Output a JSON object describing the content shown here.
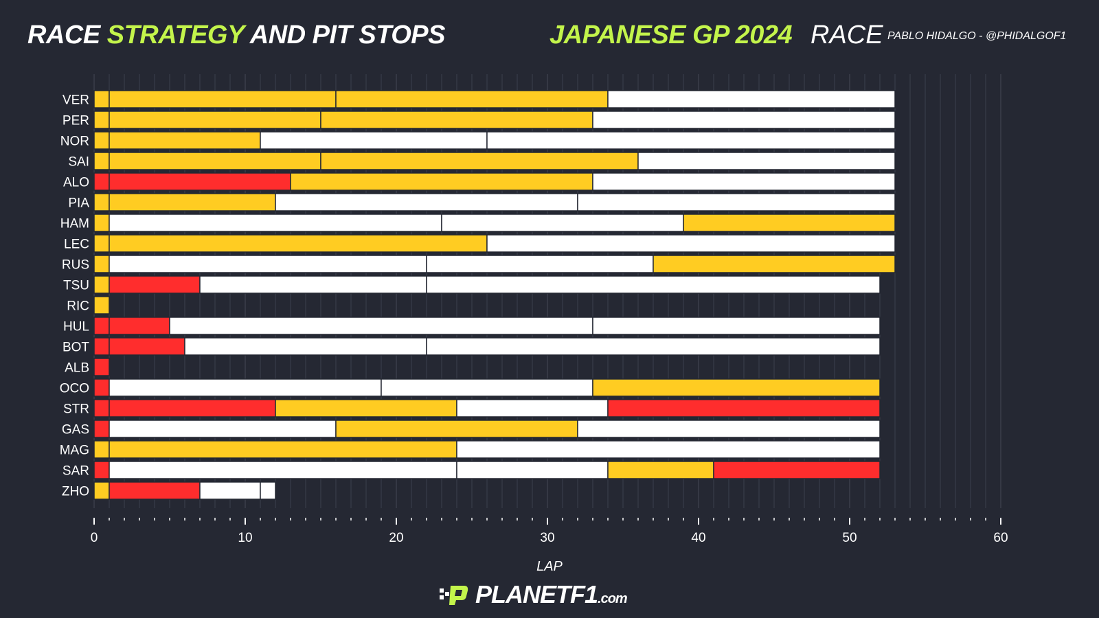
{
  "header": {
    "title_part1": "RACE ",
    "title_accent": "STRATEGY",
    "title_part2": " AND PIT STOPS",
    "event": "JAPANESE GP 2024",
    "session": "RACE",
    "author": "PABLO HIDALGO - @PHIDALGOF1"
  },
  "logo": {
    "main": "PLANETF1",
    "suffix": ".com"
  },
  "colors": {
    "background": "#252833",
    "accent": "#c3f44b",
    "soft": "#ff2d2d",
    "medium": "#ffcc22",
    "hard": "#ffffff"
  },
  "chart_data": {
    "type": "bar",
    "orientation": "horizontal-stacked",
    "xlabel": "LAP",
    "xlim": [
      0,
      60
    ],
    "xticks": [
      0,
      10,
      20,
      30,
      40,
      50,
      60
    ],
    "grid": "vertical, every lap",
    "drivers": [
      "VER",
      "PER",
      "NOR",
      "SAI",
      "ALO",
      "PIA",
      "HAM",
      "LEC",
      "RUS",
      "TSU",
      "RIC",
      "HUL",
      "BOT",
      "ALB",
      "OCO",
      "STR",
      "GAS",
      "MAG",
      "SAR",
      "ZHO"
    ],
    "stints": [
      [
        [
          "medium",
          0,
          1
        ],
        [
          "medium",
          1,
          16
        ],
        [
          "medium",
          16,
          34
        ],
        [
          "hard",
          34,
          53
        ]
      ],
      [
        [
          "medium",
          0,
          1
        ],
        [
          "medium",
          1,
          15
        ],
        [
          "medium",
          15,
          33
        ],
        [
          "hard",
          33,
          53
        ]
      ],
      [
        [
          "medium",
          0,
          1
        ],
        [
          "medium",
          1,
          11
        ],
        [
          "hard",
          11,
          26
        ],
        [
          "hard",
          26,
          53
        ]
      ],
      [
        [
          "medium",
          0,
          1
        ],
        [
          "medium",
          1,
          15
        ],
        [
          "medium",
          15,
          36
        ],
        [
          "hard",
          36,
          53
        ]
      ],
      [
        [
          "soft",
          0,
          1
        ],
        [
          "soft",
          1,
          13
        ],
        [
          "medium",
          13,
          33
        ],
        [
          "hard",
          33,
          53
        ]
      ],
      [
        [
          "medium",
          0,
          1
        ],
        [
          "medium",
          1,
          12
        ],
        [
          "hard",
          12,
          32
        ],
        [
          "hard",
          32,
          53
        ]
      ],
      [
        [
          "medium",
          0,
          1
        ],
        [
          "hard",
          1,
          23
        ],
        [
          "hard",
          23,
          39
        ],
        [
          "medium",
          39,
          53
        ]
      ],
      [
        [
          "medium",
          0,
          1
        ],
        [
          "medium",
          1,
          26
        ],
        [
          "hard",
          26,
          53
        ]
      ],
      [
        [
          "medium",
          0,
          1
        ],
        [
          "hard",
          1,
          22
        ],
        [
          "hard",
          22,
          37
        ],
        [
          "medium",
          37,
          53
        ]
      ],
      [
        [
          "medium",
          0,
          1
        ],
        [
          "soft",
          1,
          7
        ],
        [
          "hard",
          7,
          22
        ],
        [
          "hard",
          22,
          52
        ]
      ],
      [
        [
          "medium",
          0,
          1
        ]
      ],
      [
        [
          "soft",
          0,
          1
        ],
        [
          "soft",
          1,
          5
        ],
        [
          "hard",
          5,
          33
        ],
        [
          "hard",
          33,
          52
        ]
      ],
      [
        [
          "soft",
          0,
          1
        ],
        [
          "soft",
          1,
          6
        ],
        [
          "hard",
          6,
          22
        ],
        [
          "hard",
          22,
          52
        ]
      ],
      [
        [
          "soft",
          0,
          1
        ]
      ],
      [
        [
          "soft",
          0,
          1
        ],
        [
          "hard",
          1,
          19
        ],
        [
          "hard",
          19,
          33
        ],
        [
          "medium",
          33,
          52
        ]
      ],
      [
        [
          "soft",
          0,
          1
        ],
        [
          "soft",
          1,
          12
        ],
        [
          "medium",
          12,
          24
        ],
        [
          "hard",
          24,
          34
        ],
        [
          "soft",
          34,
          52
        ]
      ],
      [
        [
          "soft",
          0,
          1
        ],
        [
          "hard",
          1,
          16
        ],
        [
          "medium",
          16,
          32
        ],
        [
          "hard",
          32,
          52
        ]
      ],
      [
        [
          "medium",
          0,
          1
        ],
        [
          "medium",
          1,
          24
        ],
        [
          "hard",
          24,
          52
        ]
      ],
      [
        [
          "soft",
          0,
          1
        ],
        [
          "hard",
          1,
          24
        ],
        [
          "hard",
          24,
          34
        ],
        [
          "medium",
          34,
          41
        ],
        [
          "soft",
          41,
          52
        ]
      ],
      [
        [
          "medium",
          0,
          1
        ],
        [
          "soft",
          1,
          7
        ],
        [
          "hard",
          7,
          11
        ],
        [
          "hard",
          11,
          12
        ]
      ]
    ]
  }
}
